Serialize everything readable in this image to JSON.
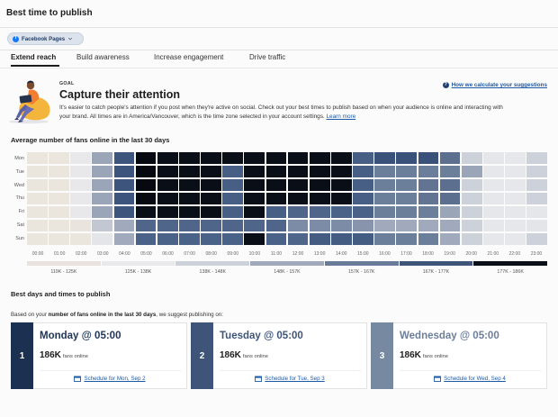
{
  "header": {
    "title": "Best time to publish"
  },
  "network_selector": {
    "label": "Facebook Pages",
    "icon": "facebook-icon",
    "icon_glyph": "f"
  },
  "tabs": [
    {
      "label": "Extend reach",
      "active": true
    },
    {
      "label": "Build awareness",
      "active": false
    },
    {
      "label": "Increase engagement",
      "active": false
    },
    {
      "label": "Drive traffic",
      "active": false
    }
  ],
  "goal": {
    "eyebrow": "GOAL",
    "title": "Capture their attention",
    "description_line1": "It's easier to catch people's attention if you post when they're active on social. Check out your best times to publish based on when your audience is online and interacting with",
    "description_line2": "your brand. All times are in America/Vancouver, which is the time zone selected in your account settings.",
    "learn_more": "Learn more",
    "help_link": "How we calculate your suggestions",
    "help_icon_glyph": "?"
  },
  "heatmap_section": {
    "title": "Average number of fans online in the last 30 days"
  },
  "chart_data": {
    "type": "heatmap",
    "title": "Average number of fans online in the last 30 days",
    "x_labels": [
      "00:00",
      "01:00",
      "02:00",
      "03:00",
      "04:00",
      "05:00",
      "06:00",
      "07:00",
      "08:00",
      "09:00",
      "10:00",
      "11:00",
      "12:00",
      "13:00",
      "14:00",
      "15:00",
      "16:00",
      "17:00",
      "18:00",
      "19:00",
      "20:00",
      "21:00",
      "22:00",
      "23:00"
    ],
    "y_labels": [
      "Mon",
      "Tue",
      "Wed",
      "Thu",
      "Fri",
      "Sat",
      "Sun"
    ],
    "value_unit": "K fans online (estimated from color)",
    "values": [
      [
        122,
        122,
        128,
        152,
        172,
        186,
        180,
        180,
        180,
        180,
        180,
        180,
        180,
        180,
        180,
        169,
        173,
        173,
        173,
        164,
        143,
        132,
        130,
        143
      ],
      [
        122,
        122,
        128,
        152,
        172,
        186,
        180,
        180,
        180,
        169,
        180,
        180,
        180,
        180,
        180,
        169,
        161,
        161,
        161,
        161,
        152,
        130,
        130,
        143
      ],
      [
        122,
        122,
        128,
        152,
        172,
        186,
        180,
        180,
        180,
        169,
        180,
        180,
        180,
        180,
        180,
        169,
        161,
        161,
        163,
        164,
        143,
        130,
        130,
        143
      ],
      [
        122,
        122,
        128,
        152,
        172,
        184,
        180,
        180,
        180,
        169,
        180,
        180,
        180,
        180,
        180,
        169,
        161,
        161,
        163,
        164,
        143,
        130,
        130,
        143
      ],
      [
        122,
        122,
        128,
        152,
        172,
        180,
        180,
        180,
        180,
        169,
        180,
        169,
        167,
        167,
        168,
        168,
        161,
        161,
        161,
        152,
        143,
        130,
        130,
        131
      ],
      [
        122,
        122,
        123,
        145,
        151,
        167,
        167,
        167,
        167,
        167,
        167,
        167,
        158,
        158,
        158,
        156,
        151,
        151,
        151,
        151,
        143,
        130,
        130,
        133
      ],
      [
        122,
        122,
        122,
        133,
        151,
        168,
        168,
        168,
        168,
        168,
        180,
        168,
        167,
        170,
        170,
        170,
        161,
        161,
        161,
        151,
        143,
        130,
        130,
        143
      ]
    ],
    "legend": [
      {
        "label": "119K - 125K",
        "color": "#e8e4dd"
      },
      {
        "label": "125K - 138K",
        "color": "#e9e9ec"
      },
      {
        "label": "138K - 148K",
        "color": "#cdd1da"
      },
      {
        "label": "148K - 157K",
        "color": "#a0a9bb"
      },
      {
        "label": "157K - 167K",
        "color": "#687b98"
      },
      {
        "label": "167K - 177K",
        "color": "#3e5479"
      },
      {
        "label": "177K - 186K",
        "color": "#0a0e16"
      }
    ],
    "color_scale": [
      [
        119,
        "#ebe7df"
      ],
      [
        124,
        "#e9e5de"
      ],
      [
        127,
        "#e9e9eb"
      ],
      [
        133,
        "#e3e5e9"
      ],
      [
        143,
        "#cdd1da"
      ],
      [
        152,
        "#9ba5b8"
      ],
      [
        158,
        "#7d8ca6"
      ],
      [
        161,
        "#6b7e9a"
      ],
      [
        164,
        "#5d6f8e"
      ],
      [
        168,
        "#4b6288"
      ],
      [
        173,
        "#3a5179"
      ],
      [
        176,
        "#1c2a42"
      ],
      [
        178,
        "#0b0f18"
      ],
      [
        186,
        "#06090f"
      ]
    ],
    "grid": false,
    "legend_position": "bottom"
  },
  "suggestions": {
    "title": "Best days and times to publish",
    "intro_prefix": "Based on your ",
    "intro_bold": "number of fans online in the last 30 days",
    "intro_suffix": ", we suggest publishing on:",
    "cards": [
      {
        "rank": "1",
        "title": "Monday @ 05:00",
        "value": "186K",
        "value_label": "fans online",
        "schedule_link": "Schedule for Mon, Sep 2",
        "accent_color": "#1c3052",
        "title_color": "#1e3557"
      },
      {
        "rank": "2",
        "title": "Tuesday @ 05:00",
        "value": "186K",
        "value_label": "fans online",
        "schedule_link": "Schedule for Tue, Sep 3",
        "accent_color": "#3e5579",
        "title_color": "#3e5579"
      },
      {
        "rank": "3",
        "title": "Wednesday @ 05:00",
        "value": "186K",
        "value_label": "fans online",
        "schedule_link": "Schedule for Wed, Sep 4",
        "accent_color": "#7788a1",
        "title_color": "#6d7e98"
      }
    ]
  },
  "colors": {
    "link": "#1c5aa6",
    "selector_bg": "#dde3ec",
    "facebook_blue": "#1877f2",
    "text_primary": "#1d1d1f"
  }
}
